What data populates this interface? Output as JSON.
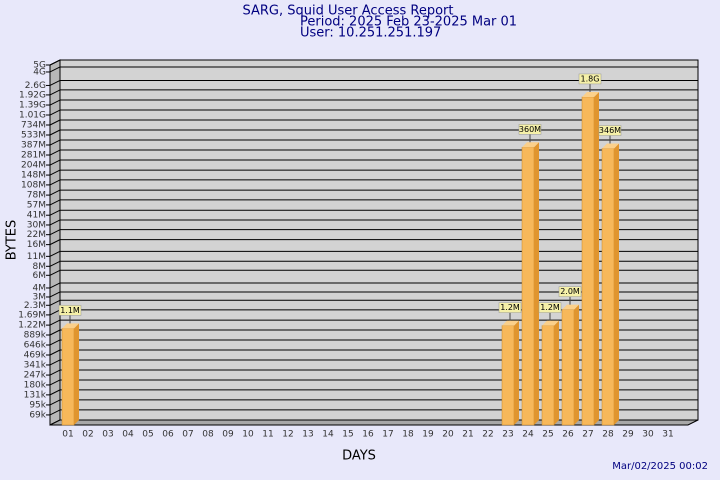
{
  "chart_data": {
    "type": "bar",
    "title": "SARG, Squid User Access Report",
    "subtitle": "Period: 2025 Feb 23-2025 Mar 01",
    "user": "User: 10.251.251.197",
    "x_label": "DAYS",
    "y_label": "BYTES",
    "footer": "Mar/02/2025 00:02",
    "categories": [
      "01",
      "02",
      "03",
      "04",
      "05",
      "06",
      "07",
      "08",
      "09",
      "10",
      "11",
      "12",
      "13",
      "14",
      "15",
      "16",
      "17",
      "18",
      "19",
      "20",
      "21",
      "22",
      "23",
      "24",
      "25",
      "26",
      "27",
      "28",
      "29",
      "30",
      "31"
    ],
    "values": [
      1100000,
      null,
      null,
      null,
      null,
      null,
      null,
      null,
      null,
      null,
      null,
      null,
      null,
      null,
      null,
      null,
      null,
      null,
      null,
      null,
      null,
      null,
      1200000,
      360000000,
      1200000,
      2000000,
      1800000000,
      346000000,
      null,
      null,
      null
    ],
    "value_labels": [
      "1.1M",
      null,
      null,
      null,
      null,
      null,
      null,
      null,
      null,
      null,
      null,
      null,
      null,
      null,
      null,
      null,
      null,
      null,
      null,
      null,
      null,
      null,
      "1.2M",
      "360M",
      "1.2M",
      "2.0M",
      "1.8G",
      "346M",
      null,
      null,
      null
    ],
    "color": "#f7b85a",
    "log_scale": true,
    "grid": true,
    "ylim": [
      50000,
      5000000000
    ],
    "yticks": [
      {
        "value": 69000,
        "label": "69k"
      },
      {
        "value": 95000,
        "label": "95k"
      },
      {
        "value": 131000,
        "label": "131k"
      },
      {
        "value": 180000,
        "label": "180k"
      },
      {
        "value": 247000,
        "label": "247k"
      },
      {
        "value": 341000,
        "label": "341k"
      },
      {
        "value": 469000,
        "label": "469k"
      },
      {
        "value": 646000,
        "label": "646k"
      },
      {
        "value": 889000,
        "label": "889k"
      },
      {
        "value": 1220000,
        "label": "1.22M"
      },
      {
        "value": 1690000,
        "label": "1.69M"
      },
      {
        "value": 2300000,
        "label": "2.3M"
      },
      {
        "value": 3000000,
        "label": "3M"
      },
      {
        "value": 4000000,
        "label": "4M"
      },
      {
        "value": 6000000,
        "label": "6M"
      },
      {
        "value": 8000000,
        "label": "8M"
      },
      {
        "value": 11000000,
        "label": "11M"
      },
      {
        "value": 16000000,
        "label": "16M"
      },
      {
        "value": 22000000,
        "label": "22M"
      },
      {
        "value": 30000000,
        "label": "30M"
      },
      {
        "value": 41000000,
        "label": "41M"
      },
      {
        "value": 57000000,
        "label": "57M"
      },
      {
        "value": 78000000,
        "label": "78M"
      },
      {
        "value": 108000000,
        "label": "108M"
      },
      {
        "value": 148000000,
        "label": "148M"
      },
      {
        "value": 204000000,
        "label": "204M"
      },
      {
        "value": 281000000,
        "label": "281M"
      },
      {
        "value": 387000000,
        "label": "387M"
      },
      {
        "value": 533000000,
        "label": "533M"
      },
      {
        "value": 734000000,
        "label": "734M"
      },
      {
        "value": 1010000000,
        "label": "1.01G"
      },
      {
        "value": 1390000000,
        "label": "1.39G"
      },
      {
        "value": 1920000000,
        "label": "1.92G"
      },
      {
        "value": 2600000000,
        "label": "2.6G"
      },
      {
        "value": 4000000000,
        "label": "4G"
      },
      {
        "value": 5000000000,
        "label": "5G"
      }
    ]
  }
}
